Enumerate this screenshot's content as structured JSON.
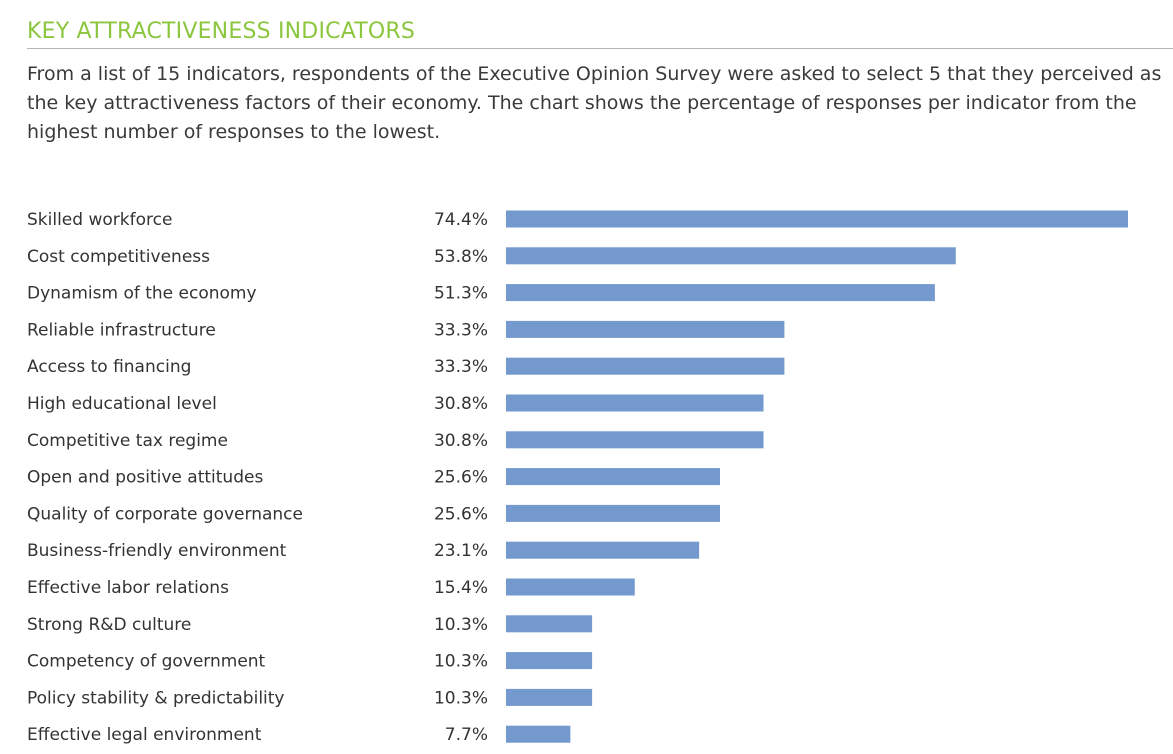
{
  "header": {
    "title": "KEY ATTRACTIVENESS INDICATORS",
    "intro": "From a list of 15 indicators, respondents of the Executive Opinion Survey were asked to select 5 that they perceived as the key attractiveness factors of their economy. The chart shows the percentage of responses per indicator from the highest number of responses to the lowest."
  },
  "chart_data": {
    "type": "bar",
    "orientation": "horizontal",
    "title": "KEY ATTRACTIVENESS INDICATORS",
    "xlabel": "",
    "ylabel": "",
    "xlim": [
      0,
      74.4
    ],
    "grid": false,
    "bar_color": "#7399cf",
    "categories": [
      "Skilled workforce",
      "Cost competitiveness",
      "Dynamism of the economy",
      "Reliable infrastructure",
      "Access to financing",
      "High educational level",
      "Competitive tax regime",
      "Open and positive attitudes",
      "Quality of corporate governance",
      "Business-friendly environment",
      "Effective labor relations",
      "Strong R&D culture",
      "Competency of government",
      "Policy stability & predictability",
      "Effective legal environment"
    ],
    "values": [
      74.4,
      53.8,
      51.3,
      33.3,
      33.3,
      30.8,
      30.8,
      25.6,
      25.6,
      23.1,
      15.4,
      10.3,
      10.3,
      10.3,
      7.7
    ],
    "value_labels": [
      "74.4%",
      "53.8%",
      "51.3%",
      "33.3%",
      "33.3%",
      "30.8%",
      "30.8%",
      "25.6%",
      "25.6%",
      "23.1%",
      "15.4%",
      "10.3%",
      "10.3%",
      "10.3%",
      "7.7%"
    ]
  }
}
